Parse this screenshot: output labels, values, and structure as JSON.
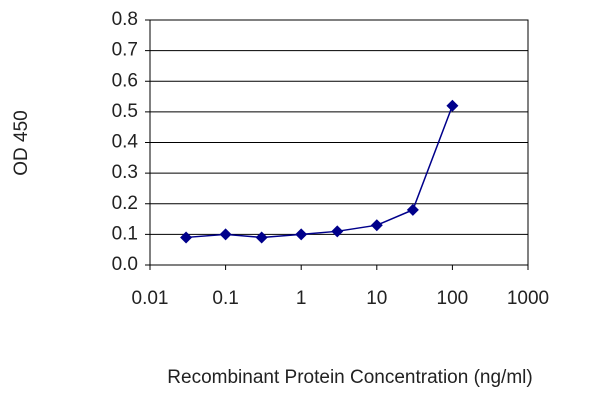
{
  "chart_data": {
    "type": "line",
    "x_label": "Recombinant Protein Concentration (ng/ml)",
    "y_label": "OD 450",
    "x": [
      0.03,
      0.1,
      0.3,
      1,
      3,
      10,
      30,
      100
    ],
    "values": [
      0.09,
      0.1,
      0.09,
      0.1,
      0.11,
      0.13,
      0.18,
      0.52
    ],
    "color": "#00008b",
    "xscale": "log",
    "xlim": [
      0.01,
      1000
    ],
    "xticks": [
      0.01,
      0.1,
      1,
      10,
      100,
      1000
    ],
    "ylim": [
      0,
      0.8
    ],
    "yticks": [
      {
        "value": 0,
        "label": "0.0"
      },
      0.1,
      0.2,
      0.3,
      0.4,
      0.5,
      0.6,
      0.7,
      0.8
    ],
    "grid": true
  }
}
